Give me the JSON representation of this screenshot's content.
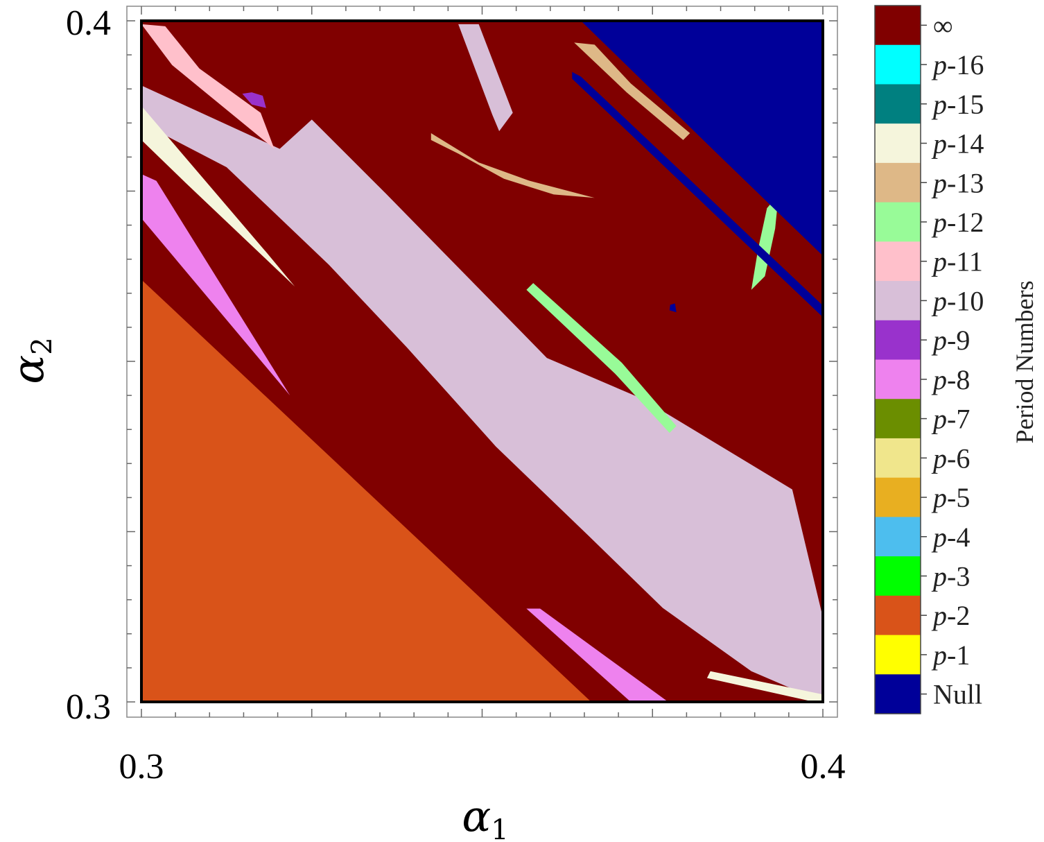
{
  "chart_data": {
    "type": "heatmap",
    "x_axis": {
      "label_base": "α",
      "label_sub": "1",
      "range": [
        0.3,
        0.4
      ],
      "tick_labels": [
        "0.3",
        "0.4"
      ]
    },
    "y_axis": {
      "label_base": "α",
      "label_sub": "2",
      "range": [
        0.3,
        0.4
      ],
      "tick_labels": [
        "0.3",
        "0.4"
      ]
    },
    "colorbar": {
      "title": "Period Numbers",
      "entries": [
        {
          "label": "∞",
          "color": "#800000"
        },
        {
          "label": "p-16",
          "color": "#00FFFF"
        },
        {
          "label": "p-15",
          "color": "#008080"
        },
        {
          "label": "p-14",
          "color": "#F5F5DC"
        },
        {
          "label": "p-13",
          "color": "#DEB887"
        },
        {
          "label": "p-12",
          "color": "#98FB98"
        },
        {
          "label": "p-11",
          "color": "#FFC0CB"
        },
        {
          "label": "p-10",
          "color": "#D8BFD8"
        },
        {
          "label": "p-9",
          "color": "#9932CC"
        },
        {
          "label": "p-8",
          "color": "#EE82EE"
        },
        {
          "label": "p-7",
          "color": "#6B8E00"
        },
        {
          "label": "p-6",
          "color": "#F0E68C"
        },
        {
          "label": "p-5",
          "color": "#E8AF21"
        },
        {
          "label": "p-4",
          "color": "#4DBEEE"
        },
        {
          "label": "p-3",
          "color": "#00FF00"
        },
        {
          "label": "p-2",
          "color": "#D95319"
        },
        {
          "label": "p-1",
          "color": "#FFFF00"
        },
        {
          "label": "Null",
          "color": "#000099"
        }
      ]
    },
    "regions": [
      {
        "label": "∞",
        "points": [
          [
            0.3,
            0.3
          ],
          [
            0.4,
            0.3
          ],
          [
            0.4,
            0.4
          ],
          [
            0.3,
            0.4
          ]
        ]
      },
      {
        "label": "p-2",
        "points": [
          [
            0.3,
            0.3
          ],
          [
            0.366,
            0.3
          ],
          [
            0.3,
            0.362
          ]
        ]
      },
      {
        "label": "p-8",
        "points": [
          [
            0.3,
            0.3775
          ],
          [
            0.3022,
            0.3765
          ],
          [
            0.3218,
            0.345
          ],
          [
            0.3,
            0.371
          ]
        ]
      },
      {
        "label": "p-8",
        "points": [
          [
            0.3565,
            0.3137
          ],
          [
            0.3718,
            0.3
          ],
          [
            0.3773,
            0.3
          ],
          [
            0.3585,
            0.3137
          ]
        ]
      },
      {
        "label": "p-10",
        "points": [
          [
            0.3,
            0.3905
          ],
          [
            0.3203,
            0.3812
          ],
          [
            0.325,
            0.3855
          ],
          [
            0.336,
            0.3745
          ],
          [
            0.3595,
            0.3505
          ],
          [
            0.3735,
            0.3445
          ],
          [
            0.3955,
            0.3312
          ],
          [
            0.4,
            0.3124
          ],
          [
            0.4,
            0.3
          ],
          [
            0.3895,
            0.3045
          ],
          [
            0.3765,
            0.3138
          ],
          [
            0.3655,
            0.3245
          ],
          [
            0.352,
            0.3375
          ],
          [
            0.339,
            0.352
          ],
          [
            0.3275,
            0.3642
          ],
          [
            0.3125,
            0.3785
          ],
          [
            0.3,
            0.385
          ]
        ]
      },
      {
        "label": "p-14",
        "points": [
          [
            0.3,
            0.3875
          ],
          [
            0.3185,
            0.3658
          ],
          [
            0.3225,
            0.361
          ],
          [
            0.3065,
            0.3762
          ],
          [
            0.3,
            0.3825
          ]
        ]
      },
      {
        "label": "p-14",
        "points": [
          [
            0.383,
            0.3035
          ],
          [
            0.3978,
            0.3002
          ],
          [
            0.4,
            0.3
          ],
          [
            0.4,
            0.3011
          ],
          [
            0.3835,
            0.3045
          ]
        ]
      },
      {
        "label": "p-11",
        "points": [
          [
            0.3,
            0.3995
          ],
          [
            0.3045,
            0.3935
          ],
          [
            0.3195,
            0.3812
          ],
          [
            0.3175,
            0.3865
          ],
          [
            0.3085,
            0.393
          ],
          [
            0.3035,
            0.3992
          ]
        ]
      },
      {
        "label": "p-9",
        "points": [
          [
            0.3148,
            0.3893
          ],
          [
            0.3162,
            0.3877
          ],
          [
            0.3183,
            0.3872
          ],
          [
            0.3178,
            0.389
          ],
          [
            0.3162,
            0.3895
          ]
        ]
      },
      {
        "label": "p-13",
        "points": [
          [
            0.3425,
            0.3835
          ],
          [
            0.3495,
            0.3792
          ],
          [
            0.357,
            0.3765
          ],
          [
            0.3665,
            0.374
          ],
          [
            0.3605,
            0.3745
          ],
          [
            0.3532,
            0.3768
          ],
          [
            0.3465,
            0.3805
          ],
          [
            0.3425,
            0.3825
          ]
        ]
      },
      {
        "label": "p-13",
        "points": [
          [
            0.3635,
            0.3968
          ],
          [
            0.3712,
            0.3895
          ],
          [
            0.3795,
            0.3825
          ],
          [
            0.3805,
            0.3835
          ],
          [
            0.3718,
            0.3908
          ],
          [
            0.3665,
            0.3965
          ]
        ]
      },
      {
        "label": "p-10",
        "points": [
          [
            0.3495,
            0.3995
          ],
          [
            0.3545,
            0.3865
          ],
          [
            0.3525,
            0.3838
          ],
          [
            0.3515,
            0.3862
          ],
          [
            0.3465,
            0.3995
          ]
        ]
      },
      {
        "label": "p-12",
        "points": [
          [
            0.3575,
            0.3615
          ],
          [
            0.3705,
            0.3498
          ],
          [
            0.3785,
            0.3405
          ],
          [
            0.3775,
            0.3395
          ],
          [
            0.3695,
            0.3482
          ],
          [
            0.3565,
            0.3605
          ]
        ]
      },
      {
        "label": "p-12",
        "points": [
          [
            0.3935,
            0.3745
          ],
          [
            0.3918,
            0.3725
          ],
          [
            0.3905,
            0.3665
          ],
          [
            0.3895,
            0.3605
          ],
          [
            0.3915,
            0.3625
          ],
          [
            0.393,
            0.3695
          ]
        ]
      },
      {
        "label": "Null",
        "points": [
          [
            0.3645,
            0.4
          ],
          [
            0.4,
            0.4
          ],
          [
            0.4,
            0.3655
          ],
          [
            0.3845,
            0.3805
          ]
        ]
      },
      {
        "label": "Null",
        "points": [
          [
            0.3632,
            0.3925
          ],
          [
            0.3645,
            0.3918
          ],
          [
            0.4,
            0.3582
          ],
          [
            0.4,
            0.3565
          ],
          [
            0.3632,
            0.3915
          ]
        ]
      },
      {
        "label": "Null",
        "points": [
          [
            0.3775,
            0.3575
          ],
          [
            0.3785,
            0.3572
          ],
          [
            0.3783,
            0.3585
          ],
          [
            0.3776,
            0.3583
          ]
        ]
      }
    ]
  }
}
